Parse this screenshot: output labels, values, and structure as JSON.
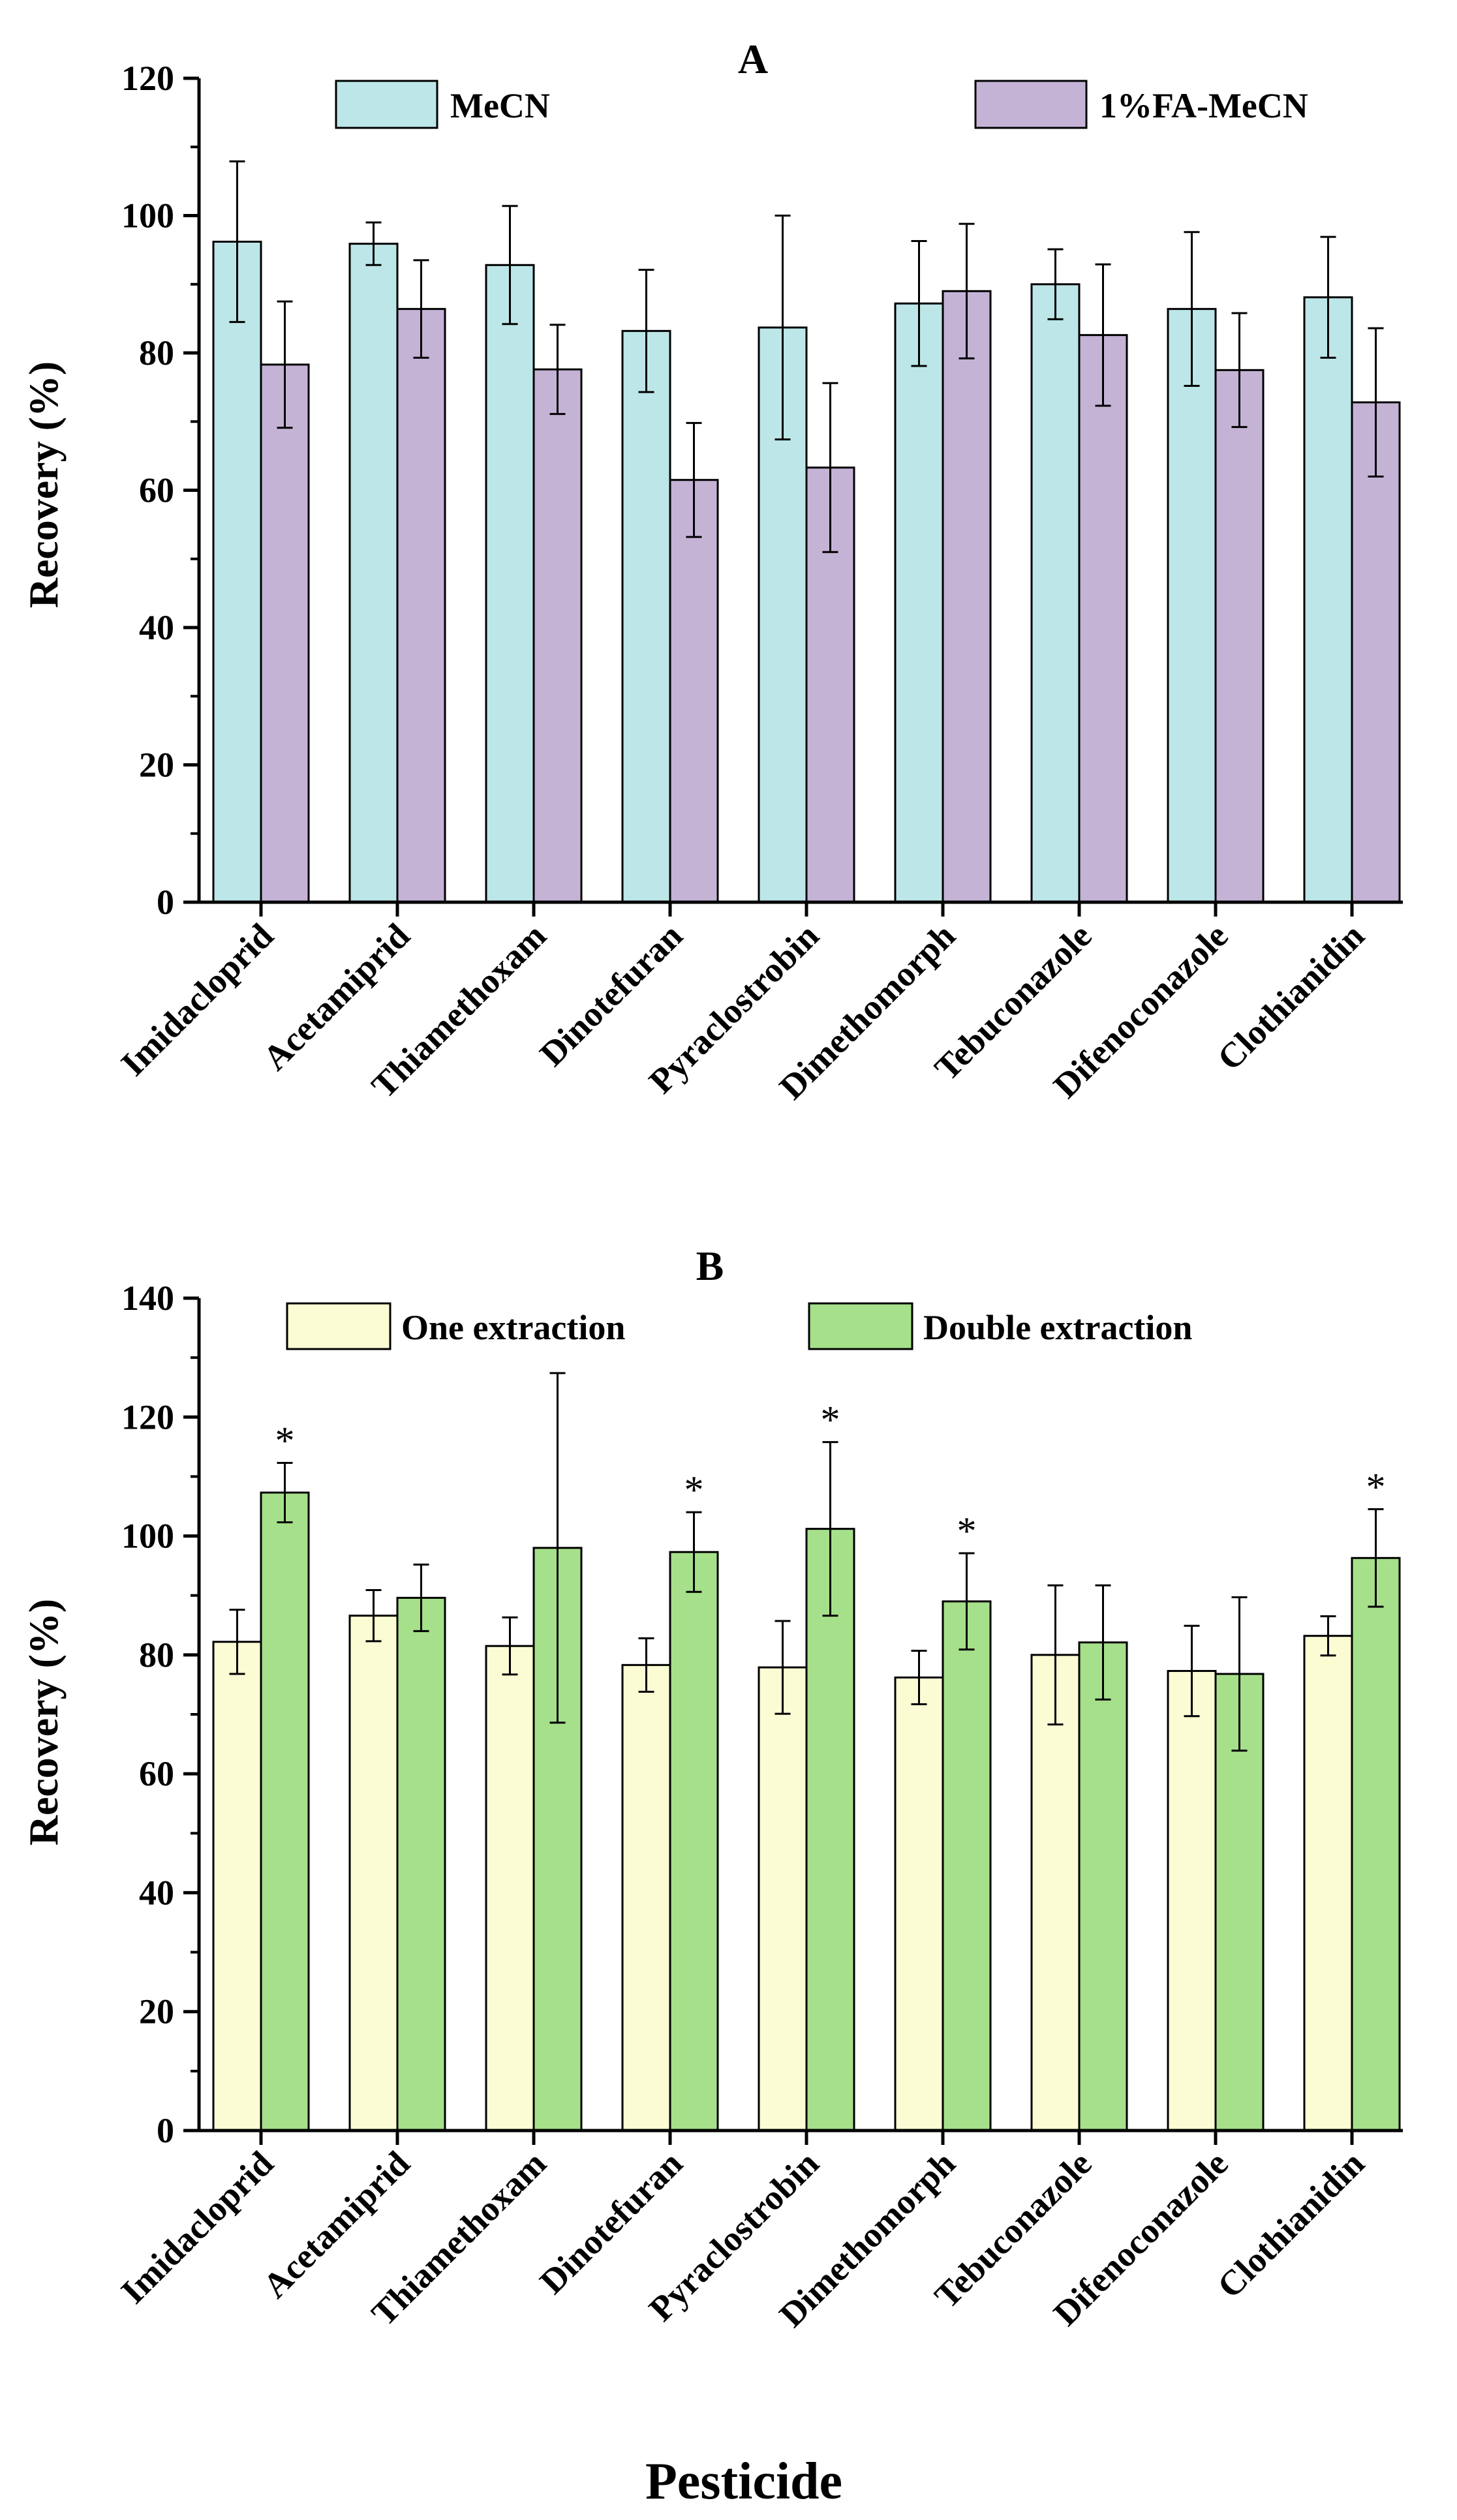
{
  "chart_data": [
    {
      "type": "bar",
      "panel": "A",
      "ylabel": "Recovery (%)",
      "ylim": [
        0,
        120
      ],
      "ytick_step": 20,
      "categories": [
        "Imidacloprid",
        "Acetamiprid",
        "Thiamethoxam",
        "Dinotefuran",
        "Pyraclostrobin",
        "Dimethomorph",
        "Tebuconazole",
        "Difenoconazole",
        "Clothianidin"
      ],
      "series": [
        {
          "name": "MeCN",
          "color": "#bde6e8",
          "values": [
            96.2,
            95.9,
            92.8,
            83.2,
            83.7,
            87.2,
            90.0,
            86.4,
            88.1
          ],
          "errors": [
            11.7,
            3.1,
            8.6,
            8.9,
            16.3,
            9.1,
            5.1,
            11.2,
            8.8
          ]
        },
        {
          "name": "1%FA-MeCN",
          "color": "#c5b3d6",
          "values": [
            78.3,
            86.4,
            77.6,
            61.5,
            63.3,
            89.0,
            82.6,
            77.5,
            72.8
          ],
          "errors": [
            9.2,
            7.1,
            6.5,
            8.3,
            12.3,
            9.8,
            10.3,
            8.3,
            10.8
          ]
        }
      ],
      "significance": []
    },
    {
      "type": "bar",
      "panel": "B",
      "ylabel": "Recovery (%)",
      "ylim": [
        0,
        140
      ],
      "ytick_step": 20,
      "categories": [
        "Imidacloprid",
        "Acetamiprid",
        "Thiamethoxam",
        "Dinotefuran",
        "Pyraclostrobin",
        "Dimethomorph",
        "Tebuconazole",
        "Difenoconazole",
        "Clothianidin"
      ],
      "series": [
        {
          "name": "One extraction",
          "color": "#fbfbd4",
          "values": [
            82.2,
            86.6,
            81.5,
            78.3,
            77.9,
            76.2,
            80.0,
            77.3,
            83.2
          ],
          "errors": [
            5.4,
            4.3,
            4.8,
            4.5,
            7.8,
            4.5,
            11.7,
            7.6,
            3.3
          ]
        },
        {
          "name": "Double extraction",
          "color": "#a6e08a",
          "values": [
            107.3,
            89.6,
            98.0,
            97.3,
            101.2,
            89.0,
            82.1,
            76.8,
            96.3
          ],
          "errors": [
            5.0,
            5.6,
            29.4,
            6.7,
            14.6,
            8.1,
            9.6,
            12.9,
            8.2
          ]
        }
      ],
      "significance": [
        "*",
        "",
        "",
        "*",
        "*",
        "*",
        "",
        "",
        "*"
      ]
    }
  ],
  "xlabel": "Pesticide"
}
